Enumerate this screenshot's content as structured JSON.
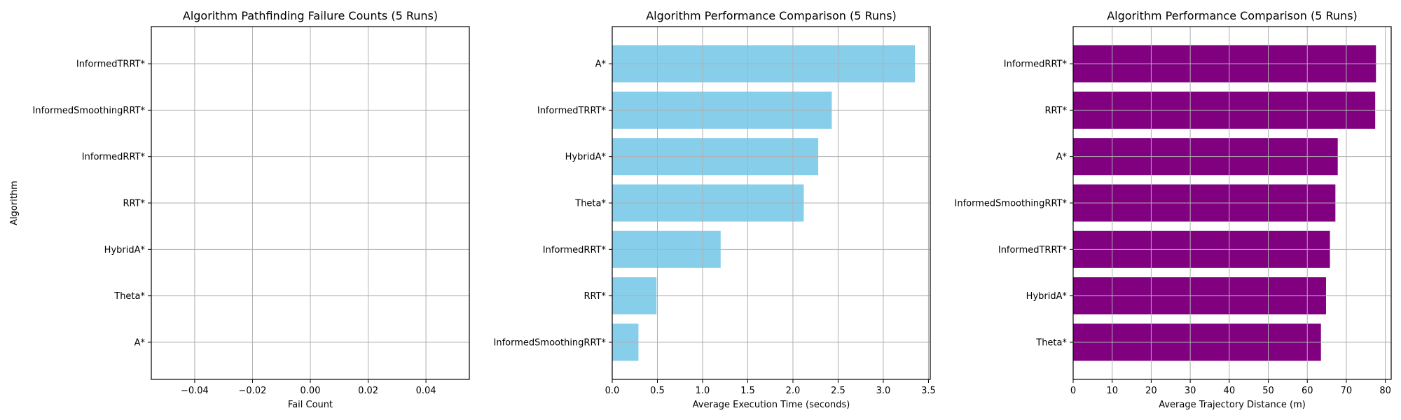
{
  "chart_data": [
    {
      "type": "bar",
      "orientation": "horizontal",
      "title": "Algorithm Pathfinding Failure Counts (5 Runs)",
      "xlabel": "Fail Count",
      "ylabel": "Algorithm",
      "categories": [
        "A*",
        "Theta*",
        "HybridA*",
        "RRT*",
        "InformedRRT*",
        "InformedSmoothingRRT*",
        "InformedTRRT*"
      ],
      "values": [
        0,
        0,
        0,
        0,
        0,
        0,
        0
      ],
      "xlim": [
        -0.055,
        0.055
      ],
      "xticks": [
        -0.04,
        -0.02,
        0.0,
        0.02,
        0.04
      ],
      "xtick_labels": [
        "−0.04",
        "−0.02",
        "0.00",
        "0.02",
        "0.04"
      ],
      "color": "#1f77b4",
      "grid": true
    },
    {
      "type": "bar",
      "orientation": "horizontal",
      "title": "Algorithm Performance Comparison (5 Runs)",
      "xlabel": "Average Execution Time (seconds)",
      "ylabel": "",
      "categories": [
        "InformedSmoothingRRT*",
        "RRT*",
        "InformedRRT*",
        "Theta*",
        "HybridA*",
        "InformedTRRT*",
        "A*"
      ],
      "values": [
        0.29,
        0.49,
        1.2,
        2.12,
        2.28,
        2.43,
        3.35
      ],
      "xlim": [
        0,
        3.52
      ],
      "xticks": [
        0.0,
        0.5,
        1.0,
        1.5,
        2.0,
        2.5,
        3.0,
        3.5
      ],
      "xtick_labels": [
        "0.0",
        "0.5",
        "1.0",
        "1.5",
        "2.0",
        "2.5",
        "3.0",
        "3.5"
      ],
      "color": "#87ceeb",
      "grid": true
    },
    {
      "type": "bar",
      "orientation": "horizontal",
      "title": "Algorithm Performance Comparison (5 Runs)",
      "xlabel": "Average Trajectory Distance (m)",
      "ylabel": "",
      "categories": [
        "Theta*",
        "HybridA*",
        "InformedTRRT*",
        "InformedSmoothingRRT*",
        "A*",
        "RRT*",
        "InformedRRT*"
      ],
      "values": [
        63.5,
        64.8,
        65.8,
        67.2,
        67.8,
        77.4,
        77.6
      ],
      "xlim": [
        0,
        81.5
      ],
      "xticks": [
        0,
        10,
        20,
        30,
        40,
        50,
        60,
        70,
        80
      ],
      "xtick_labels": [
        "0",
        "10",
        "20",
        "30",
        "40",
        "50",
        "60",
        "70",
        "80"
      ],
      "color": "#800080",
      "grid": true
    }
  ]
}
